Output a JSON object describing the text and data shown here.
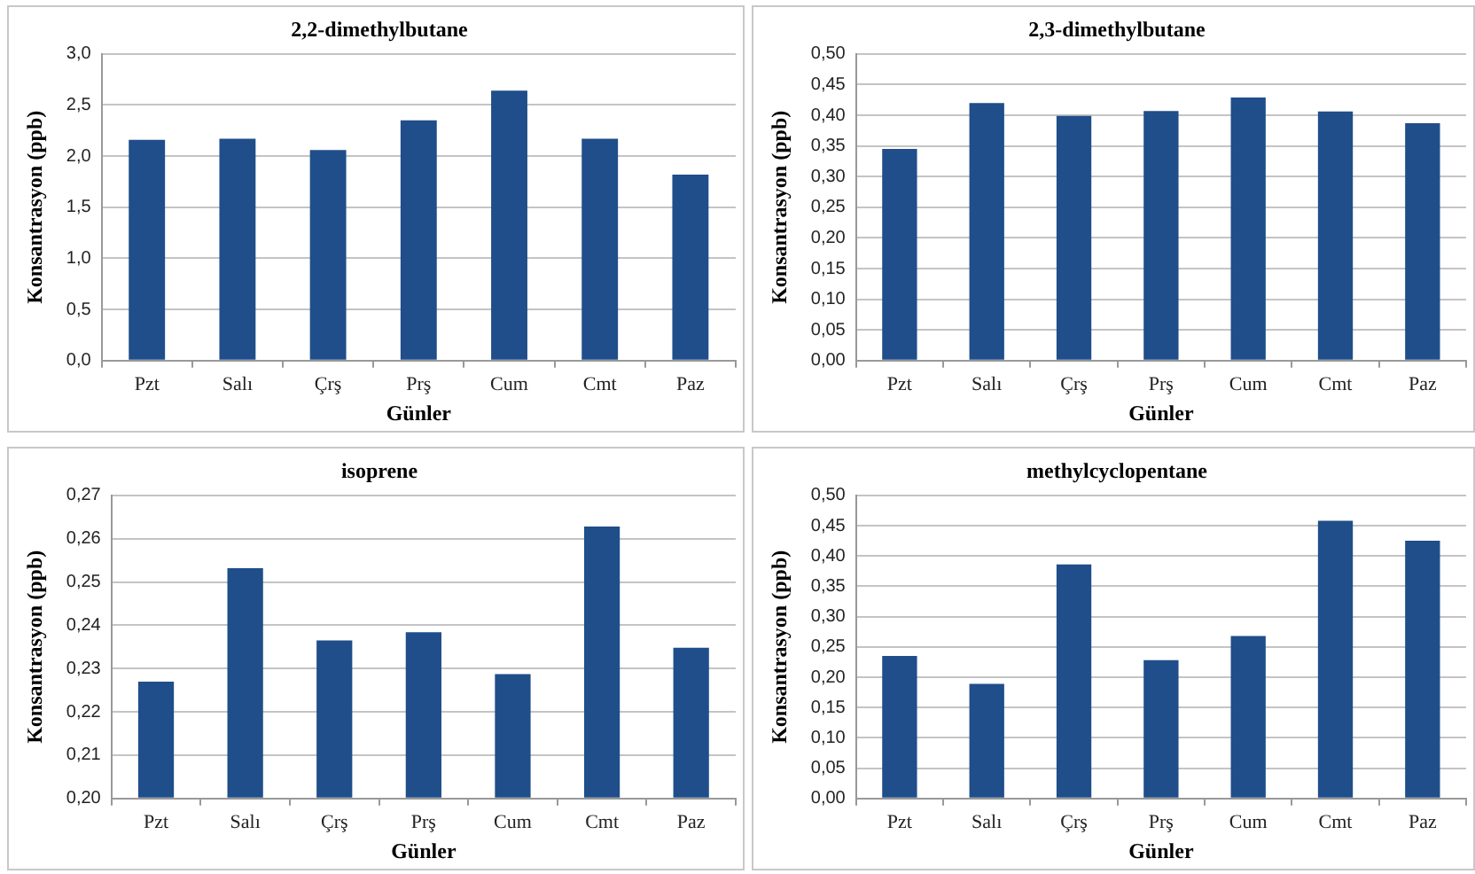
{
  "chart_data": [
    {
      "type": "bar",
      "title": "2,2-dimethylbutane",
      "xlabel": "Günler",
      "ylabel": "Konsantrasyon (ppb)",
      "categories": [
        "Pzt",
        "Salı",
        "Çrş",
        "Prş",
        "Cum",
        "Cmt",
        "Paz"
      ],
      "values": [
        2.16,
        2.17,
        2.06,
        2.35,
        2.64,
        2.17,
        1.82
      ],
      "color": "#1f4e8a",
      "ylim": [
        0,
        3
      ],
      "yticks": [
        {
          "value": 0,
          "label": "0,0"
        },
        {
          "value": 0.5,
          "label": "0,5"
        },
        {
          "value": 1,
          "label": "1,0"
        },
        {
          "value": 1.5,
          "label": "1,5"
        },
        {
          "value": 2,
          "label": "2,0"
        },
        {
          "value": 2.5,
          "label": "2,5"
        },
        {
          "value": 3,
          "label": "3,0"
        }
      ],
      "grid": "y"
    },
    {
      "type": "bar",
      "title": "2,3-dimethylbutane",
      "xlabel": "Günler",
      "ylabel": "Konsantrasyon (ppb)",
      "categories": [
        "Pzt",
        "Salı",
        "Çrş",
        "Prş",
        "Cum",
        "Cmt",
        "Paz"
      ],
      "values": [
        0.345,
        0.42,
        0.399,
        0.407,
        0.429,
        0.406,
        0.387
      ],
      "color": "#1f4e8a",
      "ylim": [
        0,
        0.5
      ],
      "yticks": [
        {
          "value": 0,
          "label": "0,00"
        },
        {
          "value": 0.05,
          "label": "0,05"
        },
        {
          "value": 0.1,
          "label": "0,10"
        },
        {
          "value": 0.15,
          "label": "0,15"
        },
        {
          "value": 0.2,
          "label": "0,20"
        },
        {
          "value": 0.25,
          "label": "0,25"
        },
        {
          "value": 0.3,
          "label": "0,30"
        },
        {
          "value": 0.35,
          "label": "0,35"
        },
        {
          "value": 0.4,
          "label": "0,40"
        },
        {
          "value": 0.45,
          "label": "0,45"
        },
        {
          "value": 0.5,
          "label": "0,50"
        }
      ],
      "grid": "y"
    },
    {
      "type": "bar",
      "title": "isoprene",
      "xlabel": "Günler",
      "ylabel": "Konsantrasyon (ppb)",
      "categories": [
        "Pzt",
        "Salı",
        "Çrş",
        "Prş",
        "Cum",
        "Cmt",
        "Paz"
      ],
      "values": [
        0.227,
        0.2532,
        0.2365,
        0.2384,
        0.2287,
        0.2628,
        0.2348
      ],
      "color": "#1f4e8a",
      "ylim": [
        0.2,
        0.27
      ],
      "yticks": [
        {
          "value": 0.2,
          "label": "0,20"
        },
        {
          "value": 0.21,
          "label": "0,21"
        },
        {
          "value": 0.22,
          "label": "0,22"
        },
        {
          "value": 0.23,
          "label": "0,23"
        },
        {
          "value": 0.24,
          "label": "0,24"
        },
        {
          "value": 0.25,
          "label": "0,25"
        },
        {
          "value": 0.26,
          "label": "0,26"
        },
        {
          "value": 0.27,
          "label": "0,27"
        }
      ],
      "grid": "y"
    },
    {
      "type": "bar",
      "title": "methylcyclopentane",
      "xlabel": "Günler",
      "ylabel": "Konsantrasyon (ppb)",
      "categories": [
        "Pzt",
        "Salı",
        "Çrş",
        "Prş",
        "Cum",
        "Cmt",
        "Paz"
      ],
      "values": [
        0.235,
        0.189,
        0.386,
        0.228,
        0.268,
        0.458,
        0.425
      ],
      "color": "#1f4e8a",
      "ylim": [
        0,
        0.5
      ],
      "yticks": [
        {
          "value": 0,
          "label": "0,00"
        },
        {
          "value": 0.05,
          "label": "0,05"
        },
        {
          "value": 0.1,
          "label": "0,10"
        },
        {
          "value": 0.15,
          "label": "0,15"
        },
        {
          "value": 0.2,
          "label": "0,20"
        },
        {
          "value": 0.25,
          "label": "0,25"
        },
        {
          "value": 0.3,
          "label": "0,30"
        },
        {
          "value": 0.35,
          "label": "0,35"
        },
        {
          "value": 0.4,
          "label": "0,40"
        },
        {
          "value": 0.45,
          "label": "0,45"
        },
        {
          "value": 0.5,
          "label": "0,50"
        }
      ],
      "grid": "y"
    }
  ]
}
